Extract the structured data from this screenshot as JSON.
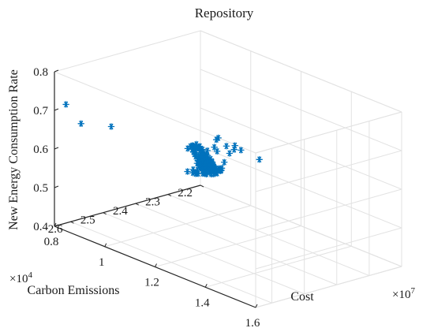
{
  "chart_data": {
    "type": "scatter",
    "projection": "3d",
    "title": "Repository",
    "xlabel": "Cost",
    "ylabel": "Carbon Emissions",
    "zlabel": "New Energy Consumption Rate",
    "x_exponent_label": "×10",
    "x_exponent_power": "7",
    "y_exponent_label": "×10",
    "y_exponent_power": "4",
    "xlim": [
      8000000,
      16000000
    ],
    "ylim": [
      22000,
      26500
    ],
    "zlim": [
      0.4,
      0.8
    ],
    "x_ticks": [
      8000000,
      10000000,
      12000000,
      14000000,
      16000000
    ],
    "x_tick_labels": [
      "0.8",
      "1",
      "1.2",
      "1.4",
      "1.6"
    ],
    "y_ticks": [
      22000,
      23000,
      24000,
      25000,
      26000
    ],
    "y_tick_labels": [
      "2.2",
      "2.3",
      "2.4",
      "2.5",
      "2.6"
    ],
    "z_ticks": [
      0.4,
      0.5,
      0.6,
      0.7,
      0.8
    ],
    "z_tick_labels": [
      "0.4",
      "0.5",
      "0.6",
      "0.7",
      "0.8"
    ],
    "grid": true,
    "marker": "*",
    "color": "#0072BD",
    "series": [
      {
        "points": [
          [
            8200000,
            26300,
            0.716
          ],
          [
            8800000,
            26300,
            0.682
          ],
          [
            10000000,
            26300,
            0.706
          ],
          [
            10300000,
            23600,
            0.527
          ],
          [
            10320000,
            23650,
            0.53
          ],
          [
            10330000,
            23950,
            0.537
          ],
          [
            10340000,
            24050,
            0.542
          ],
          [
            10360000,
            23760,
            0.534
          ],
          [
            10380000,
            23970,
            0.542
          ],
          [
            10400000,
            23530,
            0.528
          ],
          [
            10430000,
            23610,
            0.535
          ],
          [
            10440000,
            23750,
            0.537
          ],
          [
            10460000,
            23500,
            0.529
          ],
          [
            10480000,
            23790,
            0.539
          ],
          [
            10500000,
            23860,
            0.548
          ],
          [
            10520000,
            24080,
            0.547
          ],
          [
            10540000,
            24040,
            0.545
          ],
          [
            10550000,
            23780,
            0.545
          ],
          [
            10580000,
            23500,
            0.536
          ],
          [
            10600000,
            24240,
            0.562
          ],
          [
            10620000,
            23570,
            0.539
          ],
          [
            10650000,
            23540,
            0.537
          ],
          [
            10670000,
            24470,
            0.564
          ],
          [
            10700000,
            24010,
            0.559
          ],
          [
            10720000,
            23490,
            0.544
          ],
          [
            10740000,
            24000,
            0.558
          ],
          [
            10750000,
            24140,
            0.568
          ],
          [
            10770000,
            23500,
            0.547
          ],
          [
            10790000,
            24100,
            0.563
          ],
          [
            10800000,
            23560,
            0.551
          ],
          [
            10820000,
            23860,
            0.556
          ],
          [
            10830000,
            23620,
            0.556
          ],
          [
            10850000,
            23630,
            0.554
          ],
          [
            10870000,
            23750,
            0.559
          ],
          [
            10880000,
            23780,
            0.56
          ],
          [
            10900000,
            23590,
            0.558
          ],
          [
            10920000,
            23640,
            0.554
          ],
          [
            10940000,
            24370,
            0.573
          ],
          [
            10960000,
            23810,
            0.564
          ],
          [
            10970000,
            24130,
            0.568
          ],
          [
            10990000,
            24010,
            0.567
          ],
          [
            11000000,
            23890,
            0.564
          ],
          [
            11020000,
            24180,
            0.575
          ],
          [
            11040000,
            24200,
            0.573
          ],
          [
            11060000,
            23780,
            0.561
          ],
          [
            11080000,
            24130,
            0.575
          ],
          [
            11090000,
            24140,
            0.573
          ],
          [
            11110000,
            24050,
            0.574
          ],
          [
            11130000,
            23990,
            0.571
          ],
          [
            11150000,
            24000,
            0.574
          ],
          [
            11170000,
            24220,
            0.582
          ],
          [
            11190000,
            24320,
            0.583
          ],
          [
            11200000,
            24330,
            0.58
          ],
          [
            11220000,
            24410,
            0.584
          ],
          [
            11240000,
            24270,
            0.583
          ],
          [
            11260000,
            24180,
            0.578
          ],
          [
            11270000,
            24130,
            0.585
          ],
          [
            11290000,
            24300,
            0.589
          ],
          [
            11310000,
            24270,
            0.584
          ],
          [
            11330000,
            24150,
            0.586
          ],
          [
            11350000,
            24350,
            0.589
          ],
          [
            11370000,
            24450,
            0.595
          ],
          [
            11380000,
            24530,
            0.598
          ],
          [
            11400000,
            24320,
            0.594
          ],
          [
            11420000,
            24250,
            0.588
          ],
          [
            11440000,
            24310,
            0.594
          ],
          [
            11460000,
            24390,
            0.593
          ],
          [
            11480000,
            24640,
            0.598
          ],
          [
            11500000,
            24530,
            0.604
          ],
          [
            11520000,
            24370,
            0.597
          ],
          [
            11540000,
            24530,
            0.598
          ],
          [
            11560000,
            24390,
            0.607
          ],
          [
            11580000,
            24520,
            0.603
          ],
          [
            11600000,
            24830,
            0.612
          ],
          [
            11620000,
            24530,
            0.604
          ],
          [
            11640000,
            24420,
            0.604
          ],
          [
            11660000,
            24580,
            0.614
          ],
          [
            11680000,
            24630,
            0.612
          ],
          [
            11700000,
            24880,
            0.617
          ],
          [
            11720000,
            24620,
            0.617
          ],
          [
            11740000,
            24950,
            0.623
          ],
          [
            11760000,
            24850,
            0.622
          ],
          [
            11780000,
            24750,
            0.62
          ],
          [
            11800000,
            24640,
            0.617
          ],
          [
            11820000,
            24650,
            0.617
          ],
          [
            11840000,
            24920,
            0.631
          ],
          [
            11860000,
            24670,
            0.626
          ],
          [
            11880000,
            24880,
            0.628
          ],
          [
            11900000,
            24750,
            0.623
          ],
          [
            11920000,
            25140,
            0.634
          ],
          [
            11940000,
            24930,
            0.635
          ],
          [
            11960000,
            24900,
            0.632
          ],
          [
            11980000,
            24720,
            0.629
          ],
          [
            12000000,
            25090,
            0.633
          ],
          [
            12020000,
            24820,
            0.634
          ],
          [
            12040000,
            24990,
            0.64
          ],
          [
            12060000,
            24900,
            0.638
          ],
          [
            12080000,
            24920,
            0.641
          ],
          [
            12100000,
            25260,
            0.648
          ],
          [
            12120000,
            25000,
            0.646
          ],
          [
            12140000,
            25040,
            0.647
          ],
          [
            12160000,
            25050,
            0.645
          ],
          [
            12180000,
            25260,
            0.652
          ],
          [
            12200000,
            25190,
            0.653
          ],
          [
            12220000,
            25080,
            0.652
          ],
          [
            12240000,
            25360,
            0.655
          ],
          [
            12260000,
            25230,
            0.658
          ],
          [
            12280000,
            25320,
            0.659
          ],
          [
            12300000,
            25270,
            0.659
          ],
          [
            12320000,
            25150,
            0.656
          ],
          [
            12340000,
            25420,
            0.668
          ],
          [
            12360000,
            25410,
            0.665
          ],
          [
            12380000,
            25080,
            0.656
          ],
          [
            12400000,
            25230,
            0.665
          ],
          [
            12420000,
            25290,
            0.668
          ],
          [
            12440000,
            25500,
            0.674
          ],
          [
            12460000,
            25370,
            0.673
          ],
          [
            12480000,
            25260,
            0.672
          ],
          [
            12500000,
            25480,
            0.68
          ],
          [
            12520000,
            25470,
            0.676
          ],
          [
            12540000,
            25670,
            0.68
          ],
          [
            12560000,
            25450,
            0.68
          ],
          [
            12580000,
            25480,
            0.683
          ],
          [
            12600000,
            25390,
            0.681
          ],
          [
            12620000,
            25760,
            0.692
          ],
          [
            12640000,
            25730,
            0.688
          ],
          [
            12660000,
            25580,
            0.69
          ],
          [
            12680000,
            25600,
            0.686
          ],
          [
            12700000,
            25430,
            0.694
          ],
          [
            12720000,
            25590,
            0.694
          ],
          [
            12740000,
            25890,
            0.702
          ],
          [
            12760000,
            25840,
            0.7
          ],
          [
            12780000,
            25640,
            0.704
          ],
          [
            12800000,
            25980,
            0.713
          ],
          [
            12820000,
            25740,
            0.707
          ],
          [
            12840000,
            25910,
            0.712
          ],
          [
            12860000,
            26160,
            0.721
          ],
          [
            12880000,
            25820,
            0.713
          ],
          [
            12900000,
            25850,
            0.716
          ],
          [
            12920000,
            26030,
            0.726
          ],
          [
            12940000,
            26010,
            0.721
          ],
          [
            12960000,
            26030,
            0.722
          ],
          [
            12980000,
            26170,
            0.73
          ],
          [
            13000000,
            26000,
            0.732
          ],
          [
            13100000,
            26200,
            0.736
          ],
          [
            13200000,
            26050,
            0.733
          ],
          [
            13300000,
            26220,
            0.737
          ],
          [
            13350000,
            25720,
            0.727
          ],
          [
            13500000,
            25750,
            0.721
          ],
          [
            13700000,
            25380,
            0.722
          ],
          [
            13800000,
            25600,
            0.72
          ],
          [
            13850000,
            25800,
            0.703
          ],
          [
            14000000,
            26100,
            0.777
          ],
          [
            14050000,
            26200,
            0.776
          ],
          [
            14400000,
            25900,
            0.763
          ],
          [
            14450000,
            26200,
            0.77
          ],
          [
            14900000,
            26100,
            0.769
          ],
          [
            14600000,
            25300,
            0.718
          ]
        ]
      }
    ]
  }
}
